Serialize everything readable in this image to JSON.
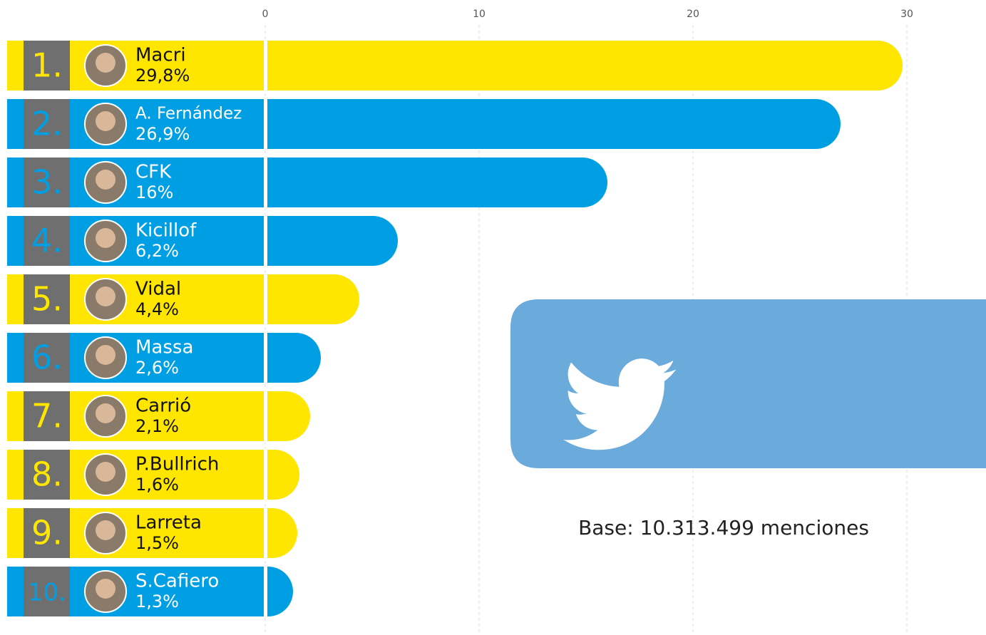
{
  "chart_data": {
    "type": "bar",
    "orientation": "horizontal",
    "ranks": [
      "1.",
      "2.",
      "3.",
      "4.",
      "5.",
      "6.",
      "7.",
      "8.",
      "9.",
      "10."
    ],
    "categories": [
      "Macri",
      "A. Fernández",
      "CFK",
      "Kicillof",
      "Vidal",
      "Massa",
      "Carrió",
      "P.Bullrich",
      "Larreta",
      "S.Cafiero"
    ],
    "values": [
      29.8,
      26.9,
      16,
      6.2,
      4.4,
      2.6,
      2.1,
      1.6,
      1.5,
      1.3
    ],
    "value_labels": [
      "29,8%",
      "26,9%",
      "16%",
      "6,2%",
      "4,4%",
      "2,6%",
      "2,1%",
      "1,6%",
      "1,5%",
      "1,3%"
    ],
    "colors": [
      "#ffe600",
      "#009fe3",
      "#009fe3",
      "#009fe3",
      "#ffe600",
      "#009fe3",
      "#ffe600",
      "#ffe600",
      "#ffe600",
      "#009fe3"
    ],
    "xlim": [
      0,
      33
    ],
    "xticks": [
      0,
      10,
      20,
      30
    ],
    "grid": true,
    "annotation": "Base: 10.313.499 menciones"
  }
}
